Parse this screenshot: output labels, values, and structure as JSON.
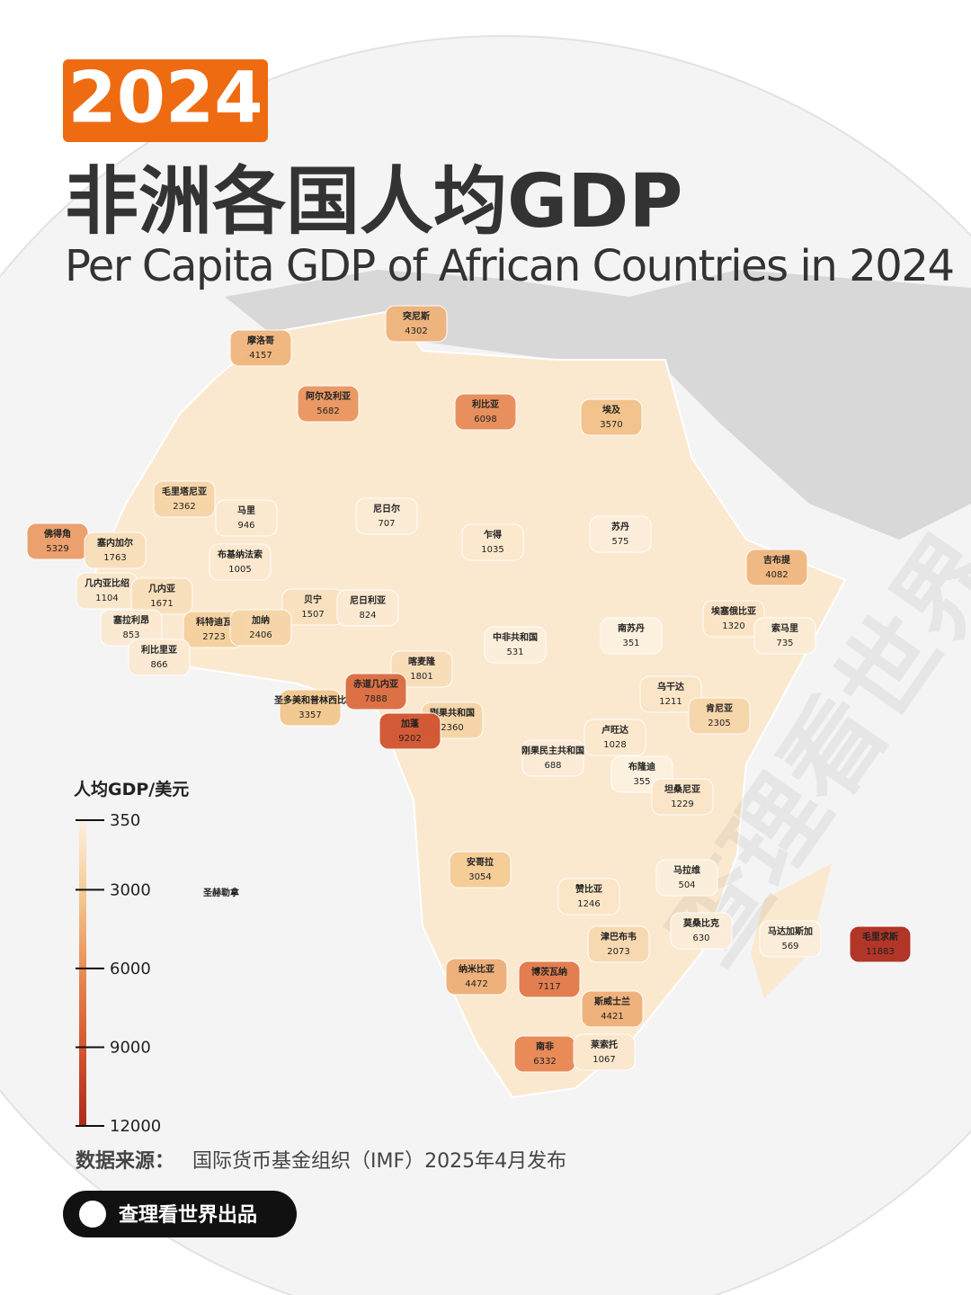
{
  "header": {
    "year_badge": "2024",
    "title": "非洲各国人均GDP",
    "subtitle": "Per Capita GDP of African Countries in 2024"
  },
  "legend": {
    "title": "人均GDP/美元",
    "range": [
      350,
      12000
    ],
    "ticks": [
      350,
      3000,
      6000,
      9000,
      12000
    ],
    "colors": [
      "#fdf1e0",
      "#f3c98f",
      "#e88a55",
      "#d2552f",
      "#ad2a1d"
    ]
  },
  "countries": [
    {
      "name": "突尼斯",
      "value": 4302
    },
    {
      "name": "摩洛哥",
      "value": 4157
    },
    {
      "name": "阿尔及利亚",
      "value": 5682
    },
    {
      "name": "利比亚",
      "value": 6098
    },
    {
      "name": "埃及",
      "value": 3570
    },
    {
      "name": "毛里塔尼亚",
      "value": 2362
    },
    {
      "name": "马里",
      "value": 946
    },
    {
      "name": "尼日尔",
      "value": 707
    },
    {
      "name": "乍得",
      "value": 1035
    },
    {
      "name": "苏丹",
      "value": 575
    },
    {
      "name": "佛得角",
      "value": 5329
    },
    {
      "name": "塞内加尔",
      "value": 1763
    },
    {
      "name": "布基纳法索",
      "value": 1005
    },
    {
      "name": "几内亚比绍",
      "value": 1104
    },
    {
      "name": "几内亚",
      "value": 1671
    },
    {
      "name": "贝宁",
      "value": 1507
    },
    {
      "name": "尼日利亚",
      "value": 824
    },
    {
      "name": "吉布提",
      "value": 4082
    },
    {
      "name": "埃塞俄比亚",
      "value": 1320
    },
    {
      "name": "索马里",
      "value": 735
    },
    {
      "name": "塞拉利昂",
      "value": 853
    },
    {
      "name": "科特迪瓦",
      "value": 2723
    },
    {
      "name": "加纳",
      "value": 2406
    },
    {
      "name": "利比里亚",
      "value": 866
    },
    {
      "name": "中非共和国",
      "value": 531
    },
    {
      "name": "南苏丹",
      "value": 351
    },
    {
      "name": "喀麦隆",
      "value": 1801
    },
    {
      "name": "赤道几内亚",
      "value": 7888
    },
    {
      "name": "圣多美和普林西比",
      "value": 3357
    },
    {
      "name": "乌干达",
      "value": 1211
    },
    {
      "name": "刚果共和国",
      "value": 2360
    },
    {
      "name": "加蓬",
      "value": 9202
    },
    {
      "name": "肯尼亚",
      "value": 2305
    },
    {
      "name": "卢旺达",
      "value": 1028
    },
    {
      "name": "刚果民主共和国",
      "value": 688
    },
    {
      "name": "布隆迪",
      "value": 355
    },
    {
      "name": "坦桑尼亚",
      "value": 1229
    },
    {
      "name": "安哥拉",
      "value": 3054
    },
    {
      "name": "马拉维",
      "value": 504
    },
    {
      "name": "赞比亚",
      "value": 1246
    },
    {
      "name": "圣赫勒拿",
      "value": null
    },
    {
      "name": "莫桑比克",
      "value": 630
    },
    {
      "name": "马达加斯加",
      "value": 569
    },
    {
      "name": "毛里求斯",
      "value": 11883
    },
    {
      "name": "津巴布韦",
      "value": 2073
    },
    {
      "name": "纳米比亚",
      "value": 4472
    },
    {
      "name": "博茨瓦纳",
      "value": 7117
    },
    {
      "name": "斯威士兰",
      "value": 4421
    },
    {
      "name": "南非",
      "value": 6332
    },
    {
      "name": "莱索托",
      "value": 1067
    }
  ],
  "footer": {
    "source_label": "数据来源：",
    "source": "国际货币基金组织（IMF）2025年4月发布",
    "brand": "查理看世界出品",
    "watermark": "查理看世界"
  }
}
